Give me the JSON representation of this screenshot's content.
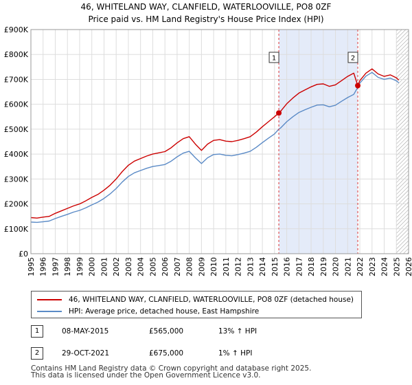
{
  "chart_data": {
    "type": "line",
    "title": "46, WHITELAND WAY, CLANFIELD, WATERLOOVILLE, PO8 0ZF",
    "subtitle": "Price paid vs. HM Land Registry's House Price Index (HPI)",
    "xlabel": "",
    "ylabel": "",
    "xlim": [
      1995,
      2026
    ],
    "ylim": [
      0,
      900000
    ],
    "y_ticks": [
      0,
      100000,
      200000,
      300000,
      400000,
      500000,
      600000,
      700000,
      800000,
      900000
    ],
    "y_tick_labels": [
      "£0",
      "£100K",
      "£200K",
      "£300K",
      "£400K",
      "£500K",
      "£600K",
      "£700K",
      "£800K",
      "£900K"
    ],
    "x_ticks": [
      1995,
      1996,
      1997,
      1998,
      1999,
      2000,
      2001,
      2002,
      2003,
      2004,
      2005,
      2006,
      2007,
      2008,
      2009,
      2010,
      2011,
      2012,
      2013,
      2014,
      2015,
      2016,
      2017,
      2018,
      2019,
      2020,
      2021,
      2022,
      2023,
      2024,
      2025,
      2026
    ],
    "grid": true,
    "shaded_region": {
      "x_start": 2015.35,
      "x_end": 2021.83
    },
    "hatched_region_start": 2025.0,
    "series": [
      {
        "name": "46, WHITELAND WAY, CLANFIELD, WATERLOOVILLE, PO8 0ZF (detached house)",
        "color": "#cc0000",
        "x": [
          1995,
          1995.5,
          1996,
          1996.5,
          1997,
          1997.5,
          1998,
          1998.5,
          1999,
          1999.5,
          2000,
          2000.5,
          2001,
          2001.5,
          2002,
          2002.5,
          2003,
          2003.5,
          2004,
          2004.5,
          2005,
          2005.5,
          2006,
          2006.5,
          2007,
          2007.5,
          2008,
          2008.5,
          2009,
          2009.5,
          2010,
          2010.5,
          2011,
          2011.5,
          2012,
          2012.5,
          2013,
          2013.5,
          2014,
          2014.5,
          2015,
          2015.35,
          2015.5,
          2016,
          2016.5,
          2017,
          2017.5,
          2018,
          2018.5,
          2019,
          2019.5,
          2020,
          2020.5,
          2021,
          2021.5,
          2021.83,
          2022,
          2022.5,
          2023,
          2023.5,
          2024,
          2024.5,
          2025,
          2025.2
        ],
        "values": [
          145000,
          143000,
          147000,
          150000,
          162000,
          172000,
          182000,
          192000,
          200000,
          212000,
          226000,
          238000,
          255000,
          275000,
          300000,
          330000,
          355000,
          372000,
          382000,
          392000,
          400000,
          405000,
          410000,
          425000,
          445000,
          462000,
          470000,
          440000,
          415000,
          440000,
          455000,
          458000,
          452000,
          450000,
          455000,
          462000,
          470000,
          488000,
          510000,
          530000,
          550000,
          565000,
          572000,
          602000,
          625000,
          645000,
          658000,
          670000,
          680000,
          682000,
          672000,
          678000,
          695000,
          712000,
          725000,
          675000,
          695000,
          725000,
          742000,
          722000,
          712000,
          718000,
          706000,
          697000
        ]
      },
      {
        "name": "HPI: Average price, detached house, East Hampshire",
        "color": "#5a8ac6",
        "x": [
          1995,
          1995.5,
          1996,
          1996.5,
          1997,
          1997.5,
          1998,
          1998.5,
          1999,
          1999.5,
          2000,
          2000.5,
          2001,
          2001.5,
          2002,
          2002.5,
          2003,
          2003.5,
          2004,
          2004.5,
          2005,
          2005.5,
          2006,
          2006.5,
          2007,
          2007.5,
          2008,
          2008.5,
          2009,
          2009.5,
          2010,
          2010.5,
          2011,
          2011.5,
          2012,
          2012.5,
          2013,
          2013.5,
          2014,
          2014.5,
          2015,
          2015.35,
          2015.5,
          2016,
          2016.5,
          2017,
          2017.5,
          2018,
          2018.5,
          2019,
          2019.5,
          2020,
          2020.5,
          2021,
          2021.5,
          2021.83,
          2022,
          2022.5,
          2023,
          2023.5,
          2024,
          2024.5,
          2025,
          2025.2
        ],
        "values": [
          127000,
          126000,
          128000,
          131000,
          141000,
          150000,
          158000,
          167000,
          174000,
          184000,
          196000,
          207000,
          222000,
          240000,
          262000,
          288000,
          310000,
          325000,
          334000,
          343000,
          350000,
          354000,
          358000,
          371000,
          389000,
          404000,
          411000,
          385000,
          362000,
          385000,
          398000,
          400000,
          395000,
          393000,
          398000,
          404000,
          411000,
          427000,
          446000,
          464000,
          481000,
          500000,
          505000,
          530000,
          550000,
          567000,
          578000,
          588000,
          597000,
          598000,
          590000,
          596000,
          612000,
          627000,
          640000,
          668000,
          685000,
          713000,
          728000,
          708000,
          700000,
          705000,
          694000,
          686000
        ]
      }
    ],
    "sales": [
      {
        "id": "1",
        "x": 2015.35,
        "value": 565000,
        "date": "08-MAY-2015",
        "price": "£565,000",
        "hpi": "13% ↑ HPI"
      },
      {
        "id": "2",
        "x": 2021.83,
        "value": 675000,
        "date": "29-OCT-2021",
        "price": "£675,000",
        "hpi": "1% ↑ HPI"
      }
    ]
  },
  "legend": {
    "entries": [
      {
        "label": "46, WHITELAND WAY, CLANFIELD, WATERLOOVILLE, PO8 0ZF (detached house)",
        "color": "#cc0000"
      },
      {
        "label": "HPI: Average price, detached house, East Hampshire",
        "color": "#5a8ac6"
      }
    ]
  },
  "footer": {
    "line1": "Contains HM Land Registry data © Crown copyright and database right 2025.",
    "line2": "This data is licensed under the Open Government Licence v3.0."
  }
}
